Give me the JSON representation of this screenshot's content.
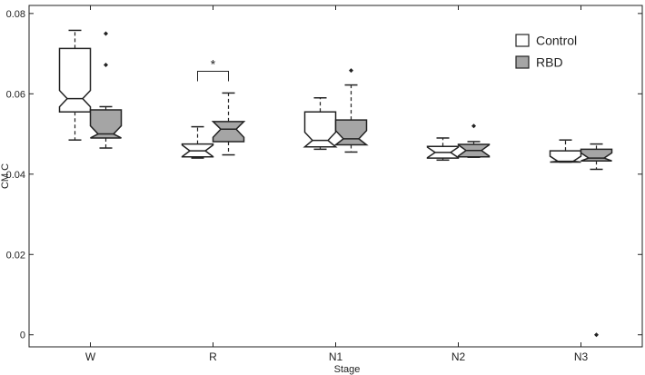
{
  "chart_data": {
    "type": "box",
    "xlabel": "Stage",
    "ylabel": "CM C",
    "ylim": [
      -0.003,
      0.082
    ],
    "yticks": [
      0,
      0.02,
      0.04,
      0.06,
      0.08
    ],
    "ytick_labels": [
      "0",
      "0.02",
      "0.04",
      "0.06",
      "0.08"
    ],
    "categories": [
      "W",
      "R",
      "N1",
      "N2",
      "N3"
    ],
    "notched": true,
    "legend_position": "top-right",
    "series": [
      {
        "name": "Control",
        "color": "#ffffff",
        "boxes": [
          {
            "whisker_low": 0.0485,
            "q1": 0.0555,
            "median": 0.0588,
            "q3": 0.0713,
            "whisker_high": 0.0758,
            "outliers": []
          },
          {
            "whisker_low": 0.044,
            "q1": 0.0443,
            "median": 0.0458,
            "q3": 0.0475,
            "whisker_high": 0.0518,
            "outliers": []
          },
          {
            "whisker_low": 0.0462,
            "q1": 0.0468,
            "median": 0.0484,
            "q3": 0.0555,
            "whisker_high": 0.059,
            "outliers": []
          },
          {
            "whisker_low": 0.0435,
            "q1": 0.044,
            "median": 0.0454,
            "q3": 0.0469,
            "whisker_high": 0.049,
            "outliers": []
          },
          {
            "whisker_low": 0.043,
            "q1": 0.043,
            "median": 0.0432,
            "q3": 0.0458,
            "whisker_high": 0.0485,
            "outliers": []
          }
        ]
      },
      {
        "name": "RBD",
        "color": "#a5a5a5",
        "boxes": [
          {
            "whisker_low": 0.0465,
            "q1": 0.049,
            "median": 0.05,
            "q3": 0.056,
            "whisker_high": 0.0568,
            "outliers": [
              0.0672,
              0.075
            ]
          },
          {
            "whisker_low": 0.0448,
            "q1": 0.0481,
            "median": 0.0512,
            "q3": 0.0531,
            "whisker_high": 0.0602,
            "outliers": []
          },
          {
            "whisker_low": 0.0455,
            "q1": 0.0473,
            "median": 0.0488,
            "q3": 0.0535,
            "whisker_high": 0.0622,
            "outliers": [
              0.0658
            ]
          },
          {
            "whisker_low": 0.0442,
            "q1": 0.0443,
            "median": 0.0459,
            "q3": 0.0474,
            "whisker_high": 0.0481,
            "outliers": [
              0.052
            ]
          },
          {
            "whisker_low": 0.0412,
            "q1": 0.0433,
            "median": 0.044,
            "q3": 0.0462,
            "whisker_high": 0.0475,
            "outliers": [
              0.0
            ]
          }
        ]
      }
    ],
    "annotations": [
      {
        "text": "*",
        "category": "R",
        "between": [
          "Control",
          "RBD"
        ],
        "y": 0.0656
      }
    ]
  }
}
